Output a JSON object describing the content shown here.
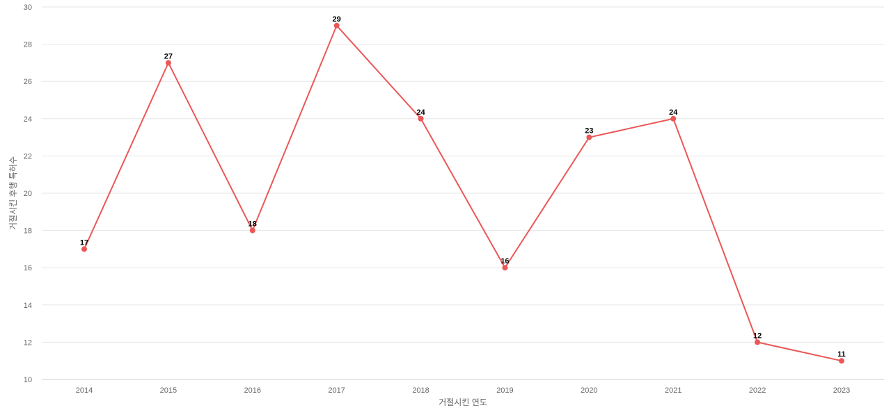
{
  "colors": {
    "series": "#eb5757",
    "grid": "#e6e6e6",
    "axis": "#cccccc",
    "tick_text": "#666666"
  },
  "chart_data": {
    "type": "line",
    "title": "",
    "xlabel": "거절시킨 연도",
    "ylabel": "거절시킨 후행 특허수",
    "x": [
      "2014",
      "2015",
      "2016",
      "2017",
      "2018",
      "2019",
      "2020",
      "2021",
      "2022",
      "2023"
    ],
    "series": [
      {
        "values": [
          17,
          27,
          18,
          29,
          24,
          16,
          23,
          24,
          12,
          11
        ]
      }
    ],
    "ylim": [
      10,
      30
    ],
    "yticks": [
      10,
      12,
      14,
      16,
      18,
      20,
      22,
      24,
      26,
      28,
      30
    ],
    "grid": "horizontal",
    "legend": "none",
    "data_labels": true
  }
}
